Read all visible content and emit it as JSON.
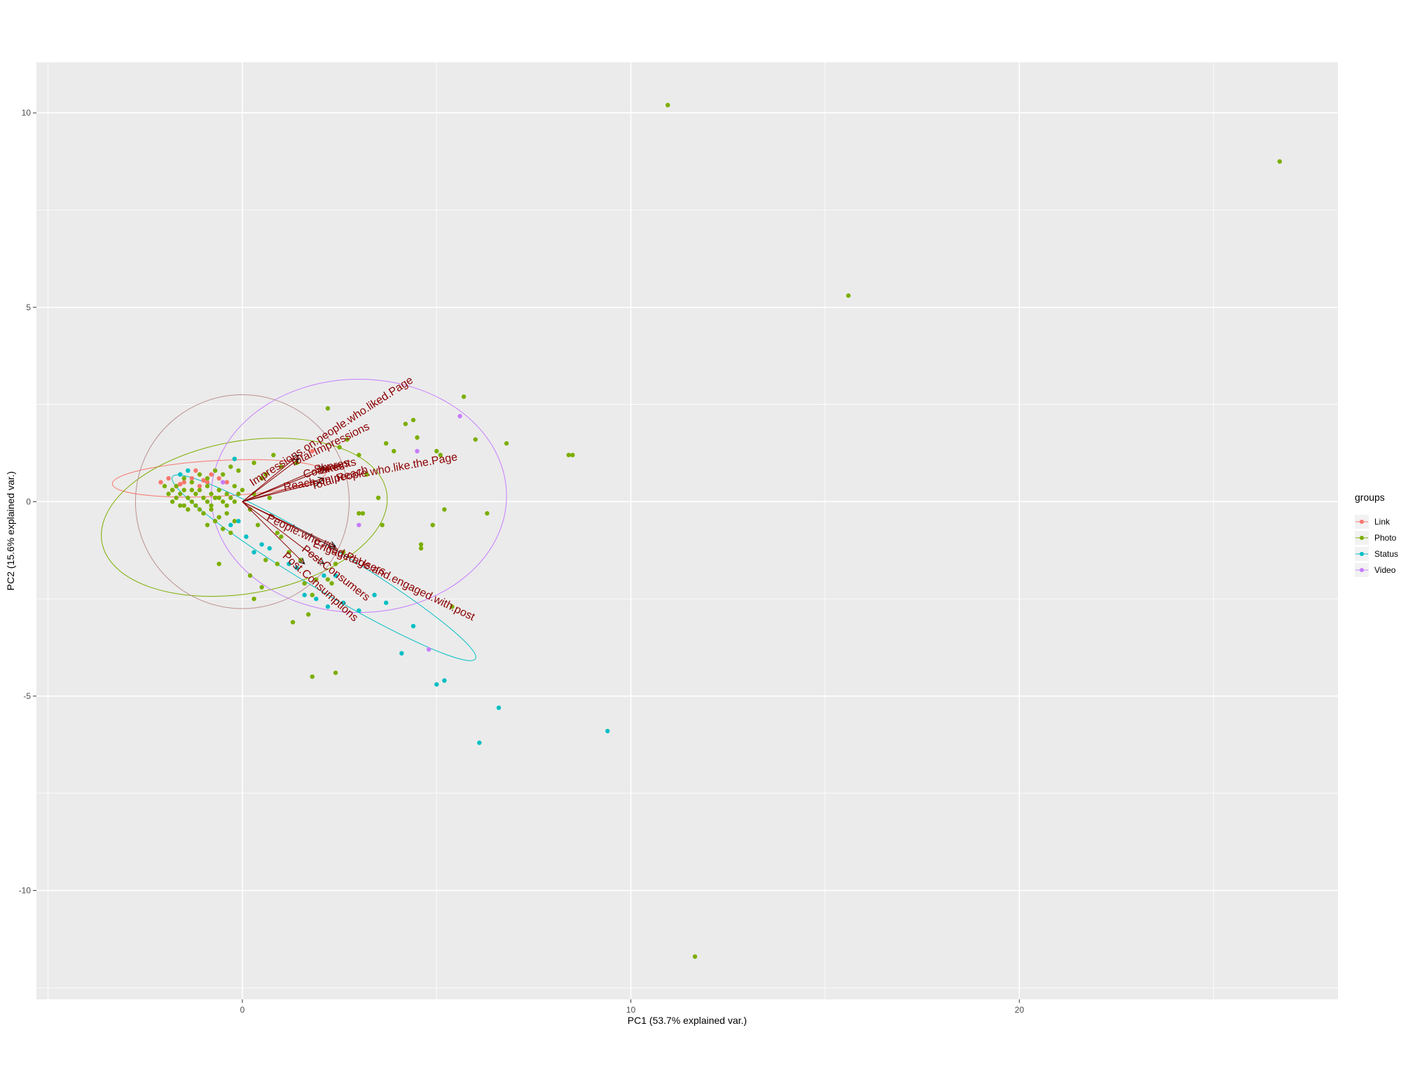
{
  "chart_data": {
    "type": "scatter",
    "xlabel": "PC1 (53.7% explained var.)",
    "ylabel": "PC2 (15.6% explained var.)",
    "xlim": [
      -5.3,
      28.2
    ],
    "ylim": [
      -12.8,
      11.3
    ],
    "x_ticks": [
      0,
      10,
      20
    ],
    "y_ticks": [
      -10,
      -5,
      0,
      5,
      10
    ],
    "grid": true,
    "legend": {
      "title": "groups",
      "placement": "right"
    },
    "series": [
      {
        "name": "Link",
        "color": "#F8766D",
        "points": [
          [
            -2.1,
            0.5
          ],
          [
            -1.9,
            0.6
          ],
          [
            -1.7,
            0.4
          ],
          [
            -1.5,
            0.5
          ],
          [
            -1.3,
            0.6
          ],
          [
            -1.1,
            0.4
          ],
          [
            -0.9,
            0.5
          ],
          [
            -0.6,
            0.6
          ],
          [
            -1.8,
            0.3
          ],
          [
            -1.2,
            0.8
          ],
          [
            -0.8,
            0.7
          ],
          [
            -0.4,
            0.5
          ],
          [
            1.8,
            1.3
          ],
          [
            -1.6,
            0.45
          ],
          [
            -1.0,
            0.55
          ]
        ]
      },
      {
        "name": "Photo",
        "color": "#7CAE00",
        "points": [
          [
            10.95,
            10.2
          ],
          [
            26.7,
            8.75
          ],
          [
            15.6,
            5.3
          ],
          [
            11.65,
            -11.7
          ],
          [
            8.4,
            1.2
          ],
          [
            8.5,
            1.2
          ],
          [
            5.7,
            2.7
          ],
          [
            6.0,
            1.6
          ],
          [
            6.8,
            1.5
          ],
          [
            6.3,
            -0.3
          ],
          [
            4.4,
            2.1
          ],
          [
            4.5,
            1.65
          ],
          [
            4.2,
            2.0
          ],
          [
            3.9,
            1.3
          ],
          [
            3.7,
            1.5
          ],
          [
            4.6,
            -1.1
          ],
          [
            4.6,
            -1.2
          ],
          [
            4.9,
            -0.6
          ],
          [
            5.0,
            1.3
          ],
          [
            5.1,
            1.2
          ],
          [
            5.2,
            -0.2
          ],
          [
            5.4,
            -2.7
          ],
          [
            3.6,
            -0.6
          ],
          [
            3.5,
            0.1
          ],
          [
            2.2,
            2.4
          ],
          [
            2.5,
            1.4
          ],
          [
            2.7,
            1.6
          ],
          [
            3.0,
            1.2
          ],
          [
            3.2,
            0.7
          ],
          [
            3.0,
            -0.3
          ],
          [
            3.1,
            -0.3
          ],
          [
            2.6,
            -1.3
          ],
          [
            2.4,
            -1.6
          ],
          [
            2.2,
            -2.0
          ],
          [
            2.3,
            -2.1
          ],
          [
            1.9,
            -2.0
          ],
          [
            1.8,
            -2.4
          ],
          [
            1.6,
            -2.1
          ],
          [
            1.3,
            -3.1
          ],
          [
            1.7,
            -2.9
          ],
          [
            1.8,
            -4.5
          ],
          [
            2.4,
            -4.4
          ],
          [
            1.5,
            -1.5
          ],
          [
            1.2,
            -1.3
          ],
          [
            1.0,
            -0.9
          ],
          [
            0.9,
            -1.6
          ],
          [
            0.6,
            -1.5
          ],
          [
            0.5,
            -2.2
          ],
          [
            0.3,
            -2.5
          ],
          [
            0.2,
            -1.9
          ],
          [
            -0.6,
            -1.6
          ],
          [
            0.8,
            1.2
          ],
          [
            1.4,
            1.0
          ],
          [
            1.0,
            0.9
          ],
          [
            0.6,
            0.7
          ],
          [
            0.7,
            0.1
          ],
          [
            0.3,
            0.2
          ],
          [
            0.2,
            -0.2
          ],
          [
            0.4,
            -0.6
          ],
          [
            0.9,
            -0.8
          ],
          [
            -2.0,
            0.4
          ],
          [
            -1.9,
            0.2
          ],
          [
            -1.8,
            0.3
          ],
          [
            -1.7,
            0.1
          ],
          [
            -1.6,
            0.2
          ],
          [
            -1.5,
            0.3
          ],
          [
            -1.4,
            0.1
          ],
          [
            -1.3,
            0.0
          ],
          [
            -1.2,
            0.2
          ],
          [
            -1.1,
            0.3
          ],
          [
            -1.0,
            0.1
          ],
          [
            -0.9,
            0.0
          ],
          [
            -0.8,
            0.2
          ],
          [
            -0.7,
            0.1
          ],
          [
            -0.6,
            0.3
          ],
          [
            -0.5,
            0.0
          ],
          [
            -0.4,
            0.2
          ],
          [
            -0.3,
            0.1
          ],
          [
            -0.2,
            0.4
          ],
          [
            -0.1,
            0.2
          ],
          [
            0.0,
            0.3
          ],
          [
            -1.6,
            -0.1
          ],
          [
            -1.4,
            -0.2
          ],
          [
            -1.2,
            -0.1
          ],
          [
            -1.0,
            -0.3
          ],
          [
            -0.8,
            -0.2
          ],
          [
            -0.6,
            -0.4
          ],
          [
            -0.4,
            -0.3
          ],
          [
            -0.2,
            -0.5
          ],
          [
            -0.9,
            -0.6
          ],
          [
            -0.7,
            -0.5
          ],
          [
            -0.5,
            -0.7
          ],
          [
            -0.3,
            -0.8
          ],
          [
            -1.5,
            0.6
          ],
          [
            -1.3,
            0.5
          ],
          [
            -1.1,
            0.7
          ],
          [
            -0.9,
            0.6
          ],
          [
            -0.7,
            0.8
          ],
          [
            -0.5,
            0.7
          ],
          [
            -0.3,
            0.9
          ],
          [
            -0.1,
            0.8
          ],
          [
            -0.2,
            1.1
          ],
          [
            0.3,
            1.0
          ],
          [
            0.5,
            0.6
          ],
          [
            -1.8,
            0.0
          ],
          [
            -1.7,
            0.4
          ],
          [
            -1.5,
            -0.1
          ],
          [
            -1.3,
            0.3
          ],
          [
            -1.1,
            -0.2
          ],
          [
            -0.9,
            0.4
          ],
          [
            -0.8,
            -0.1
          ],
          [
            -0.6,
            0.1
          ],
          [
            -0.4,
            -0.1
          ],
          [
            -0.2,
            0.0
          ]
        ]
      },
      {
        "name": "Status",
        "color": "#00BFC4",
        "points": [
          [
            9.4,
            -5.9
          ],
          [
            6.6,
            -5.3
          ],
          [
            6.1,
            -6.2
          ],
          [
            5.2,
            -4.6
          ],
          [
            5.0,
            -4.7
          ],
          [
            4.1,
            -3.9
          ],
          [
            4.4,
            -3.2
          ],
          [
            3.7,
            -2.6
          ],
          [
            3.4,
            -2.4
          ],
          [
            3.0,
            -2.8
          ],
          [
            2.6,
            -2.6
          ],
          [
            2.2,
            -2.7
          ],
          [
            1.9,
            -2.5
          ],
          [
            1.6,
            -2.4
          ],
          [
            2.1,
            -1.9
          ],
          [
            2.4,
            -1.9
          ],
          [
            1.4,
            -1.7
          ],
          [
            1.2,
            -1.6
          ],
          [
            0.7,
            -1.2
          ],
          [
            0.5,
            -1.1
          ],
          [
            0.3,
            -1.3
          ],
          [
            0.1,
            -0.9
          ],
          [
            -0.1,
            -0.5
          ],
          [
            -0.3,
            -0.6
          ],
          [
            -0.2,
            1.1
          ],
          [
            -1.4,
            0.8
          ],
          [
            -1.6,
            0.7
          ]
        ]
      },
      {
        "name": "Video",
        "color": "#C77CFF",
        "points": [
          [
            5.6,
            2.2
          ],
          [
            4.5,
            1.3
          ],
          [
            3.0,
            -0.6
          ],
          [
            4.8,
            -3.8
          ],
          [
            -0.5,
            0.5
          ]
        ]
      }
    ],
    "ellipses": [
      {
        "group": "Link",
        "color": "#F8766D",
        "cx": -0.6,
        "cy": 0.6,
        "rx": 2.75,
        "ry": 0.46,
        "angle": 3
      },
      {
        "group": "Photo",
        "color": "#7CAE00",
        "cx": 0.05,
        "cy": -0.4,
        "rx": 3.72,
        "ry": 1.96,
        "angle": 10
      },
      {
        "group": "Status",
        "color": "#00BFC4",
        "cx": 2.1,
        "cy": -1.7,
        "rx": 4.55,
        "ry": 0.55,
        "angle": -31
      },
      {
        "group": "Video",
        "color": "#C77CFF",
        "cx": 3.0,
        "cy": 0.15,
        "rx": 3.8,
        "ry": 3.0,
        "angle": 0
      },
      {
        "group": "",
        "color": "#BC8F8F",
        "cx": 0.0,
        "cy": 0.0,
        "rx": 2.75,
        "ry": 2.75,
        "angle": 0
      }
    ],
    "loadings": [
      {
        "label": "Impressions.on.people.who.liked.Page",
        "x": 1.45,
        "y": 1.2,
        "tx": 2.3,
        "ty": 1.8,
        "rot": -33
      },
      {
        "label": "Total.Impressions",
        "x": 1.45,
        "y": 1.1,
        "tx": 2.25,
        "ty": 1.45,
        "rot": -26
      },
      {
        "label": "Comments",
        "x": 2.1,
        "y": 0.9,
        "tx": 2.25,
        "ty": 0.85,
        "rot": -14
      },
      {
        "label": "Likes",
        "x": 2.15,
        "y": 0.85,
        "tx": 2.3,
        "ty": 0.85,
        "rot": -12
      },
      {
        "label": "Shares",
        "x": 2.15,
        "y": 0.85,
        "tx": 2.3,
        "ty": 0.9,
        "rot": -12
      },
      {
        "label": "Total.Reach",
        "x": 2.1,
        "y": 0.6,
        "tx": 2.5,
        "ty": 0.6,
        "rot": -17
      },
      {
        "label": "Reach.on.people.who.like.the.Page",
        "x": 2.0,
        "y": 0.5,
        "tx": 3.3,
        "ty": 0.75,
        "rot": -10
      },
      {
        "label": "Engaged.Users",
        "x": 2.4,
        "y": -1.2,
        "tx": 2.75,
        "ty": -1.45,
        "rot": 22
      },
      {
        "label": "People.who.liked.Page.and.engaged.with.post",
        "x": 2.4,
        "y": -1.15,
        "tx": 3.3,
        "ty": -1.7,
        "rot": 26
      },
      {
        "label": "Post.Consumers",
        "x": 1.6,
        "y": -1.6,
        "tx": 2.4,
        "ty": -1.85,
        "rot": 38
      },
      {
        "label": "Post.Consumptions",
        "x": 2.1,
        "y": -1.6,
        "tx": 2.0,
        "ty": -2.2,
        "rot": 42
      }
    ]
  }
}
